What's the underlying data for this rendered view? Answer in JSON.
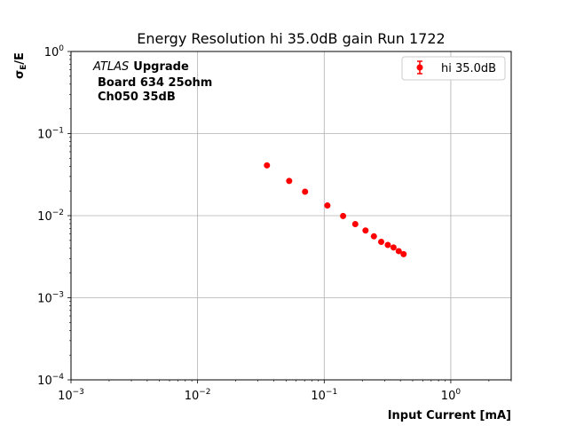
{
  "chart_data": {
    "type": "scatter",
    "title": "Energy Resolution hi 35.0dB gain Run 1722",
    "xlabel": "Input Current [mA]",
    "ylabel_main": "σ",
    "ylabel_sub": "E",
    "ylabel_tail": "/E",
    "xscale": "log",
    "yscale": "log",
    "xlim": [
      0.001,
      3
    ],
    "ylim": [
      0.0001,
      1
    ],
    "grid": true,
    "legend_position": "top-right",
    "x_ticks": [
      {
        "value": 0.001,
        "base": "10",
        "exp": "−3"
      },
      {
        "value": 0.01,
        "base": "10",
        "exp": "−2"
      },
      {
        "value": 0.1,
        "base": "10",
        "exp": "−1"
      },
      {
        "value": 1,
        "base": "10",
        "exp": "0"
      }
    ],
    "y_ticks": [
      {
        "value": 0.0001,
        "base": "10",
        "exp": "−4"
      },
      {
        "value": 0.001,
        "base": "10",
        "exp": "−3"
      },
      {
        "value": 0.01,
        "base": "10",
        "exp": "−2"
      },
      {
        "value": 0.1,
        "base": "10",
        "exp": "−1"
      },
      {
        "value": 1,
        "base": "10",
        "exp": "0"
      }
    ],
    "annotation": {
      "atlas": "ATLAS",
      "upgrade": "Upgrade",
      "line2": "Board 634 25ohm",
      "line3": "Ch050 35dB"
    },
    "series": [
      {
        "name": "hi 35.0dB",
        "color": "#ff0000",
        "marker": "circle",
        "x": [
          0.0353,
          0.0529,
          0.0706,
          0.106,
          0.141,
          0.176,
          0.212,
          0.247,
          0.282,
          0.318,
          0.353,
          0.388,
          0.424
        ],
        "y": [
          0.041,
          0.0265,
          0.0196,
          0.0133,
          0.0099,
          0.0079,
          0.0066,
          0.0056,
          0.0048,
          0.0044,
          0.0041,
          0.0037,
          0.0034
        ]
      }
    ]
  }
}
